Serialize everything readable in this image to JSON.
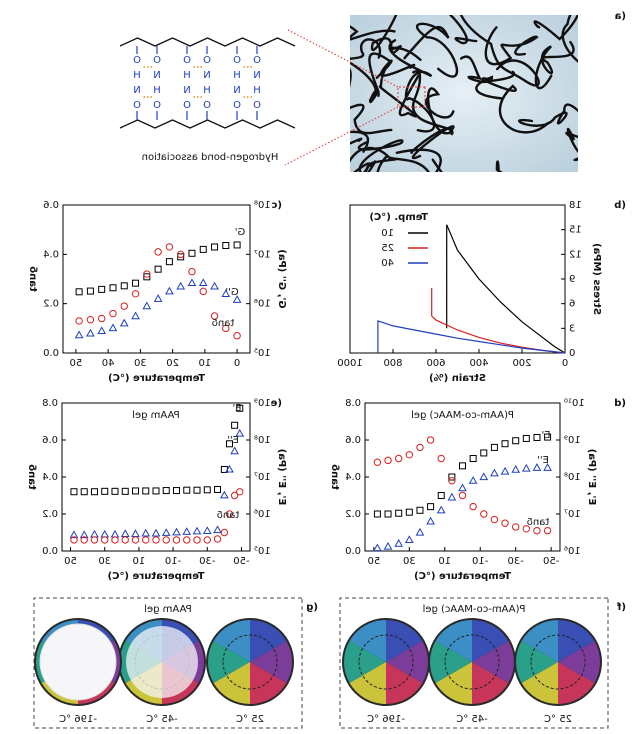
{
  "panel_labels": [
    "(a",
    "(b",
    "(c",
    "(d",
    "(e",
    "(f",
    "(g"
  ],
  "panel_a": {
    "caption": "Hydrogen-bond association",
    "atoms": [
      "O",
      "N",
      "H",
      "O",
      "O",
      "H",
      "N",
      "O",
      "O",
      "N",
      "H",
      "O",
      "O",
      "H",
      "N",
      "O",
      "O",
      "N",
      "H",
      "O",
      "O",
      "H",
      "N",
      "O"
    ]
  },
  "chart_data": [
    {
      "type": "line",
      "xlabel": "Strain (%)",
      "ylabel": "Stress (MPa)",
      "legend_title": "Temp. (°C)",
      "legend": "upper right",
      "xlim": [
        0,
        1000
      ],
      "ylim": [
        0,
        18
      ],
      "xticks": [
        0,
        200,
        400,
        600,
        800,
        1000
      ],
      "yticks": [
        0,
        3,
        6,
        9,
        12,
        15,
        18
      ],
      "series": [
        {
          "name": "10",
          "color": "#000000",
          "x": [
            0,
            50,
            100,
            200,
            300,
            400,
            500,
            550,
            550
          ],
          "values": [
            0,
            0.8,
            1.8,
            3.8,
            6.2,
            9,
            12.5,
            15.6,
            3
          ]
        },
        {
          "name": "25",
          "color": "#d62020",
          "x": [
            0,
            100,
            200,
            300,
            400,
            500,
            600,
            620,
            620
          ],
          "values": [
            0,
            0.3,
            0.7,
            1.2,
            1.9,
            2.8,
            4.0,
            4.5,
            7.9
          ]
        },
        {
          "name": "40",
          "color": "#1f3fbf",
          "x": [
            0,
            100,
            200,
            300,
            400,
            500,
            600,
            700,
            800,
            870,
            870
          ],
          "values": [
            0,
            0.3,
            0.6,
            1.0,
            1.4,
            1.8,
            2.3,
            2.8,
            3.3,
            3.9,
            0
          ]
        }
      ]
    },
    {
      "type": "scatter",
      "xlabel": "Temperature (°C)",
      "ylabel": "G', G'' (Pa)",
      "y2label": "tanδ",
      "ylog": true,
      "xlim": [
        -4,
        54
      ],
      "ylim": [
        100000,
        100000000
      ],
      "xticks": [
        0,
        10,
        20,
        30,
        40,
        50
      ],
      "yticks": [
        {
          "value": 100000,
          "label": "10⁵"
        },
        {
          "value": 1000000,
          "label": "10⁶"
        },
        {
          "value": 10000000,
          "label": "10⁷"
        },
        {
          "value": 100000000,
          "label": "10⁸"
        }
      ],
      "y2lim": [
        0,
        0.6
      ],
      "y2ticks": [
        {
          "value": 0,
          "label": "0.0"
        },
        0.2,
        0.4,
        0.6
      ],
      "x": [
        0,
        3.5,
        7,
        10.5,
        14,
        17.5,
        21,
        24.5,
        28,
        31.5,
        35,
        38.5,
        42,
        45.5,
        49
      ],
      "series": [
        {
          "name": "G'",
          "color": "#000000",
          "marker": "square",
          "values": [
            15500000,
            15100000,
            14100000,
            12600000,
            10500000,
            8900000,
            7100000,
            5000000,
            3500000,
            2600000,
            2300000,
            2100000,
            1950000,
            1800000,
            1740000
          ]
        },
        {
          "name": "G''",
          "color": "#1f3fbf",
          "marker": "triangle",
          "values": [
            1200000,
            1580000,
            2240000,
            2630000,
            2630000,
            2240000,
            1780000,
            1260000,
            890000,
            560000,
            400000,
            320000,
            280000,
            250000,
            230000
          ]
        },
        {
          "name": "tanδ",
          "color": "#d62020",
          "marker": "circle",
          "axis": "y2",
          "values": [
            0.07,
            0.1,
            0.15,
            0.25,
            0.33,
            0.4,
            0.43,
            0.41,
            0.32,
            0.24,
            0.19,
            0.16,
            0.14,
            0.135,
            0.13
          ]
        }
      ]
    },
    {
      "type": "scatter",
      "title": "P(AAm-co-MAAc) gel",
      "xlabel": "Temperature (°C)",
      "ylabel": "E', E'' (Pa)",
      "y2label": "tanδ",
      "ylog": true,
      "xlim": [
        -55,
        55
      ],
      "ylim": [
        1000000,
        10000000000
      ],
      "xticks": [
        -50,
        -30,
        -10,
        10,
        30,
        50
      ],
      "yticks": [
        {
          "value": 1000000,
          "label": "10⁶"
        },
        {
          "value": 10000000,
          "label": "10⁷"
        },
        {
          "value": 100000000,
          "label": "10⁸"
        },
        {
          "value": 1000000000,
          "label": "10⁹"
        },
        {
          "value": 10000000000,
          "label": "10¹⁰"
        }
      ],
      "y2lim": [
        0,
        0.8
      ],
      "y2ticks": [
        {
          "value": 0,
          "label": "0.0"
        },
        0.2,
        0.4,
        0.6,
        0.8
      ],
      "x": [
        48,
        42,
        36,
        30,
        24,
        18,
        12,
        6,
        0,
        -6,
        -12,
        -18,
        -24,
        -30,
        -36,
        -42,
        -48
      ],
      "series": [
        {
          "name": "E'",
          "color": "#000000",
          "marker": "square",
          "values": [
            10000000,
            10000000,
            10500000,
            11200000,
            12600000,
            15800000,
            31600000,
            100000000,
            200000000,
            316000000,
            447000000,
            631000000,
            794000000,
            955000000,
            1100000000,
            1170000000,
            1200000000
          ]
        },
        {
          "name": "E''",
          "color": "#1f3fbf",
          "marker": "triangle",
          "values": [
            1200000,
            1320000,
            1580000,
            2000000,
            3160000,
            6310000,
            12600000,
            28200000,
            50100000,
            79400000,
            100000000,
            126000000,
            141000000,
            158000000,
            170000000,
            178000000,
            178000000
          ]
        },
        {
          "name": "tanδ",
          "color": "#d62020",
          "marker": "circle",
          "axis": "y2",
          "values": [
            0.48,
            0.49,
            0.5,
            0.52,
            0.56,
            0.6,
            0.5,
            0.38,
            0.3,
            0.24,
            0.2,
            0.17,
            0.15,
            0.13,
            0.12,
            0.11,
            0.11
          ]
        }
      ]
    },
    {
      "type": "scatter",
      "title": "PAAm gel",
      "xlabel": "Temperature (°C)",
      "ylabel": "E', E'' (Pa)",
      "y2label": "tanδ",
      "ylog": true,
      "xlim": [
        -55,
        55
      ],
      "ylim": [
        100000,
        1000000000
      ],
      "xticks": [
        -50,
        -30,
        -10,
        10,
        30,
        50
      ],
      "yticks": [
        {
          "value": 100000,
          "label": "10⁵"
        },
        {
          "value": 1000000,
          "label": "10⁶"
        },
        {
          "value": 10000000,
          "label": "10⁷"
        },
        {
          "value": 100000000,
          "label": "10⁸"
        },
        {
          "value": 1000000000,
          "label": "10⁹"
        }
      ],
      "y2lim": [
        0,
        0.8
      ],
      "y2ticks": [
        {
          "value": 0,
          "label": "0.0"
        },
        0.2,
        0.4,
        0.6,
        0.8
      ],
      "x": [
        48,
        42,
        36,
        30,
        24,
        18,
        12,
        6,
        0,
        -6,
        -12,
        -18,
        -24,
        -30,
        -36,
        -40,
        -43,
        -46,
        -49
      ],
      "series": [
        {
          "name": "E'",
          "color": "#000000",
          "marker": "square",
          "values": [
            4000000,
            4000000,
            4000000,
            4100000,
            4100000,
            4100000,
            4200000,
            4200000,
            4200000,
            4300000,
            4300000,
            4400000,
            4400000,
            4500000,
            4600000,
            16000000,
            79000000,
            250000000,
            720000000
          ]
        },
        {
          "name": "E''",
          "color": "#1f3fbf",
          "marker": "triangle",
          "values": [
            270000,
            270000,
            280000,
            280000,
            280000,
            290000,
            290000,
            300000,
            300000,
            310000,
            320000,
            330000,
            340000,
            350000,
            370000,
            3200000,
            16000000,
            50000000,
            150000000
          ]
        },
        {
          "name": "tanδ",
          "color": "#d62020",
          "marker": "circle",
          "axis": "y2",
          "values": [
            0.06,
            0.06,
            0.06,
            0.06,
            0.06,
            0.06,
            0.06,
            0.06,
            0.06,
            0.06,
            0.06,
            0.06,
            0.06,
            0.06,
            0.065,
            0.1,
            0.2,
            0.3,
            0.32
          ]
        }
      ]
    }
  ],
  "panel_f": {
    "title": "P(AAm-co-MAAc) gel",
    "temperatures": [
      "25 °C",
      "-45 °C",
      "-196 °C"
    ]
  },
  "panel_g": {
    "title": "PAAm gel",
    "temperatures": [
      "25 °C",
      "-45 °C",
      "-196 °C"
    ]
  }
}
